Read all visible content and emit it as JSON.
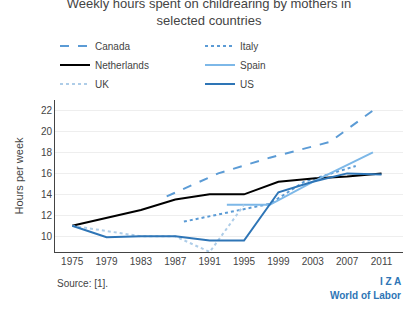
{
  "chart_data": {
    "type": "line",
    "title": "Weekly hours spent on childrearing by mothers in\nselected countries",
    "ylabel": "Hours per week",
    "annotations": [
      "Source: [1].",
      "I Z A",
      "World of Labor"
    ],
    "xlim": [
      1973,
      2013.5
    ],
    "xticks": [
      1975,
      1979,
      1983,
      1987,
      1991,
      1995,
      1999,
      2003,
      2007,
      2011
    ],
    "ylim": [
      8.5,
      23
    ],
    "yticks": [
      10,
      12,
      14,
      16,
      18,
      20,
      22
    ],
    "grid": "y",
    "legend": "upper left",
    "series": [
      {
        "name": "Canada",
        "color": "#5b9bd5",
        "line_style": "dashed",
        "x": [
          1986,
          1992,
          1998,
          2005,
          2010
        ],
        "values": [
          13.8,
          16.0,
          17.5,
          19.0,
          22.0
        ]
      },
      {
        "name": "Italy",
        "color": "#5b9bd5",
        "line_style": "dotted",
        "x": [
          1988,
          1998,
          2002,
          2008
        ],
        "values": [
          11.4,
          13.1,
          15.2,
          16.7
        ]
      },
      {
        "name": "Netherlands",
        "color": "#000000",
        "line_style": "solid",
        "x": [
          1975,
          1983,
          1987,
          1991,
          1995,
          1999,
          2003,
          2007,
          2011
        ],
        "values": [
          11.0,
          12.5,
          13.5,
          14.0,
          14.0,
          15.2,
          15.5,
          15.7,
          16.0
        ]
      },
      {
        "name": "Spain",
        "color": "#7db8e8",
        "line_style": "solid",
        "x": [
          1993,
          1998,
          2003,
          2010
        ],
        "values": [
          13.0,
          13.0,
          15.2,
          18.0
        ]
      },
      {
        "name": "UK",
        "color": "#aecde8",
        "line_style": "dotted",
        "x": [
          1975,
          1983,
          1987,
          1991,
          1995
        ],
        "values": [
          11.0,
          10.0,
          10.0,
          8.5,
          13.0
        ]
      },
      {
        "name": "US",
        "color": "#2e75b6",
        "line_style": "solid",
        "x": [
          1975,
          1979,
          1983,
          1987,
          1991,
          1995,
          1999,
          2003,
          2007,
          2011
        ],
        "values": [
          11.0,
          9.9,
          10.0,
          10.0,
          9.6,
          9.6,
          14.2,
          15.2,
          16.0,
          15.9
        ]
      }
    ]
  }
}
